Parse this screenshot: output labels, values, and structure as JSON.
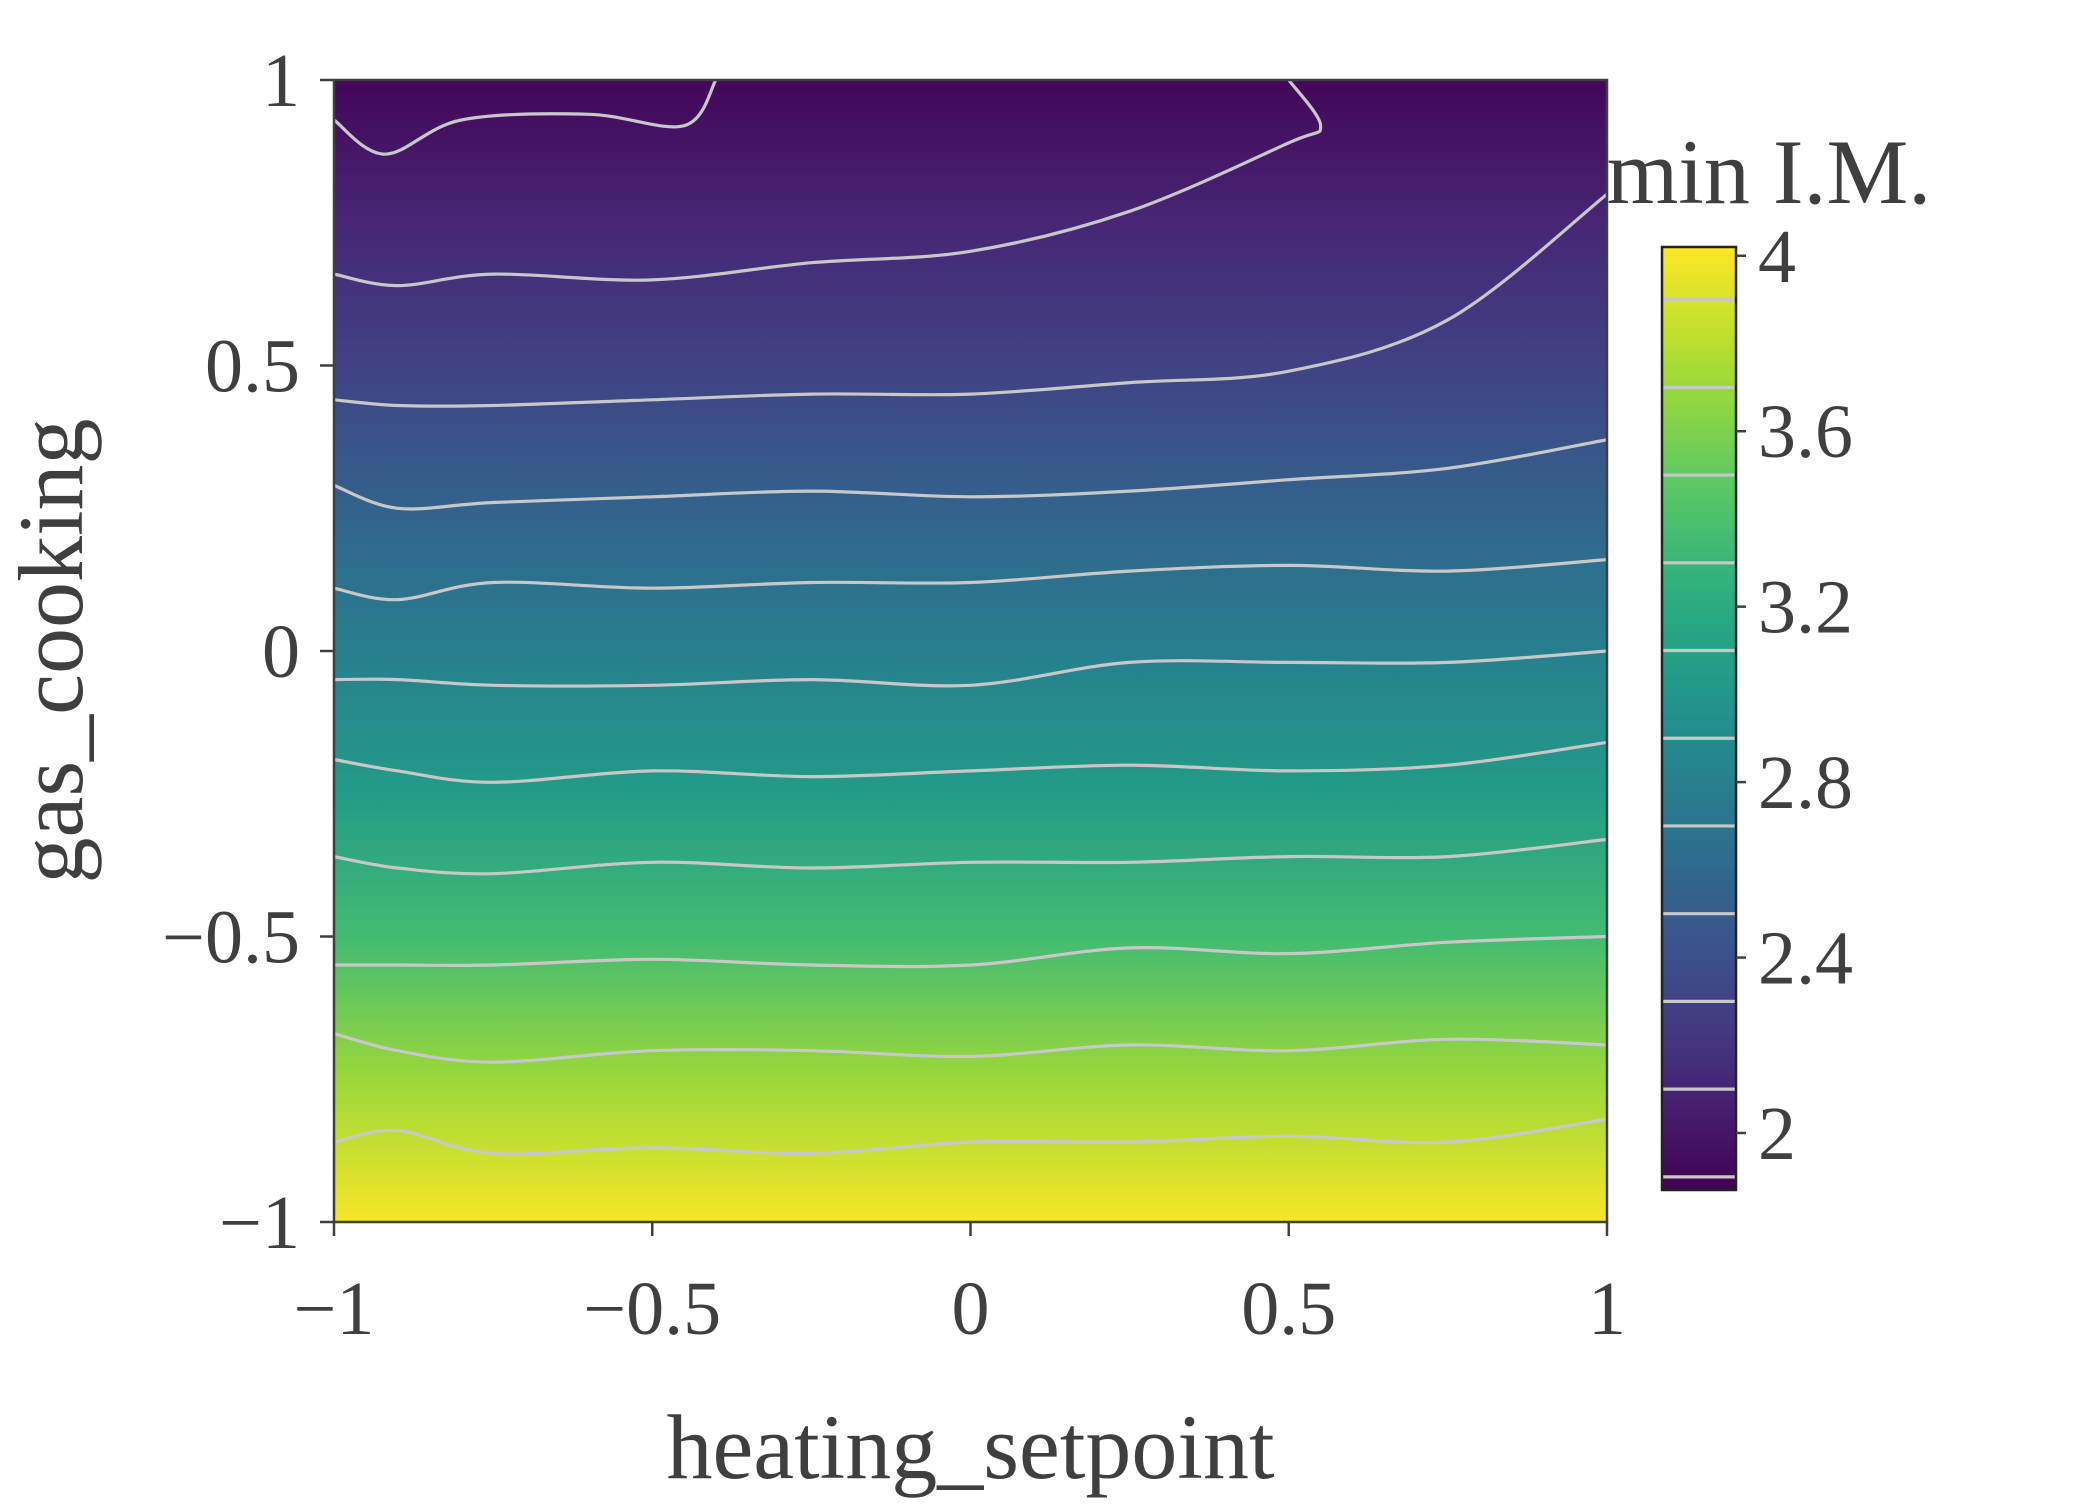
{
  "chart_data": {
    "type": "heatmap",
    "subtype": "filled contour with contour lines",
    "title": "",
    "xlabel": "heating_setpoint",
    "ylabel": "gas_cooking",
    "xlim": [
      -1,
      1
    ],
    "ylim": [
      -1,
      1
    ],
    "x_ticks": [
      -1,
      -0.5,
      0,
      0.5,
      1
    ],
    "x_tick_labels": [
      "−1",
      "−0.5",
      "0",
      "0.5",
      "1"
    ],
    "y_ticks": [
      -1,
      -0.5,
      0,
      0.5,
      1
    ],
    "y_tick_labels": [
      "−1",
      "−0.5",
      "0",
      "0.5",
      "1"
    ],
    "grid": false,
    "colormap": "viridis",
    "colorbar": {
      "title": "min I.M.",
      "range": [
        1.87,
        4.02
      ],
      "ticks": [
        2,
        2.4,
        2.8,
        3.2,
        3.6,
        4
      ],
      "tick_labels": [
        "2",
        "2.4",
        "2.8",
        "3.2",
        "3.6",
        "4"
      ],
      "contour_levels": [
        1.9,
        2.1,
        2.3,
        2.5,
        2.7,
        2.9,
        3.1,
        3.3,
        3.5,
        3.7,
        3.9
      ]
    },
    "contour_line_color": "#c8c8c8",
    "value_profile_along_gas_cooking": {
      "gas_cooking": [
        1,
        0.75,
        0.5,
        0.25,
        0,
        -0.25,
        -0.5,
        -0.75,
        -1
      ],
      "min_IM": [
        1.9,
        2.1,
        2.3,
        2.55,
        2.8,
        3.05,
        3.35,
        3.7,
        4.0
      ]
    },
    "contour_lines": [
      {
        "level": 3.9,
        "x": [
          -1,
          -0.9,
          -0.75,
          -0.5,
          -0.25,
          0,
          0.25,
          0.5,
          0.75,
          1
        ],
        "y": [
          -0.86,
          -0.84,
          -0.88,
          -0.87,
          -0.88,
          -0.86,
          -0.86,
          -0.85,
          -0.86,
          -0.82
        ]
      },
      {
        "level": 3.7,
        "x": [
          -1,
          -0.9,
          -0.75,
          -0.5,
          -0.25,
          0,
          0.25,
          0.5,
          0.75,
          1
        ],
        "y": [
          -0.67,
          -0.7,
          -0.72,
          -0.7,
          -0.7,
          -0.71,
          -0.69,
          -0.7,
          -0.68,
          -0.69
        ]
      },
      {
        "level": 3.5,
        "x": [
          -1,
          -0.9,
          -0.75,
          -0.5,
          -0.25,
          0,
          0.25,
          0.5,
          0.75,
          1
        ],
        "y": [
          -0.55,
          -0.55,
          -0.55,
          -0.54,
          -0.55,
          -0.55,
          -0.52,
          -0.53,
          -0.51,
          -0.5
        ]
      },
      {
        "level": 3.3,
        "x": [
          -1,
          -0.9,
          -0.75,
          -0.5,
          -0.25,
          0,
          0.25,
          0.5,
          0.75,
          1
        ],
        "y": [
          -0.36,
          -0.38,
          -0.39,
          -0.37,
          -0.38,
          -0.37,
          -0.37,
          -0.36,
          -0.36,
          -0.33
        ]
      },
      {
        "level": 3.1,
        "x": [
          -1,
          -0.9,
          -0.75,
          -0.5,
          -0.25,
          0,
          0.25,
          0.5,
          0.75,
          1
        ],
        "y": [
          -0.19,
          -0.21,
          -0.23,
          -0.21,
          -0.22,
          -0.21,
          -0.2,
          -0.21,
          -0.2,
          -0.16
        ]
      },
      {
        "level": 2.9,
        "x": [
          -1,
          -0.9,
          -0.75,
          -0.5,
          -0.25,
          0,
          0.25,
          0.5,
          0.75,
          1
        ],
        "y": [
          -0.05,
          -0.05,
          -0.06,
          -0.06,
          -0.05,
          -0.06,
          -0.02,
          -0.02,
          -0.02,
          0.0
        ]
      },
      {
        "level": 2.7,
        "x": [
          -1,
          -0.9,
          -0.75,
          -0.5,
          -0.25,
          0,
          0.25,
          0.5,
          0.75,
          1
        ],
        "y": [
          0.11,
          0.09,
          0.12,
          0.11,
          0.12,
          0.12,
          0.14,
          0.15,
          0.14,
          0.16
        ]
      },
      {
        "level": 2.5,
        "x": [
          -1,
          -0.9,
          -0.75,
          -0.5,
          -0.25,
          0,
          0.25,
          0.5,
          0.75,
          1
        ],
        "y": [
          0.29,
          0.25,
          0.26,
          0.27,
          0.28,
          0.27,
          0.28,
          0.3,
          0.32,
          0.37
        ]
      },
      {
        "level": 2.3,
        "x": [
          -1,
          -0.9,
          -0.75,
          -0.5,
          -0.25,
          0,
          0.25,
          0.5,
          0.75,
          1
        ],
        "y": [
          0.44,
          0.43,
          0.43,
          0.44,
          0.45,
          0.45,
          0.47,
          0.49,
          0.58,
          0.8
        ]
      },
      {
        "level": 2.1,
        "x": [
          -1,
          -0.9,
          -0.75,
          -0.5,
          -0.25,
          0,
          0.25,
          0.5,
          0.55,
          0.5
        ],
        "y": [
          0.66,
          0.64,
          0.66,
          0.65,
          0.68,
          0.7,
          0.77,
          0.89,
          0.92,
          1.0
        ]
      },
      {
        "level": 1.9,
        "x": [
          -1,
          -0.92,
          -0.8,
          -0.6,
          -0.45,
          -0.4
        ],
        "y": [
          0.93,
          0.87,
          0.93,
          0.94,
          0.92,
          1.0
        ]
      }
    ]
  }
}
